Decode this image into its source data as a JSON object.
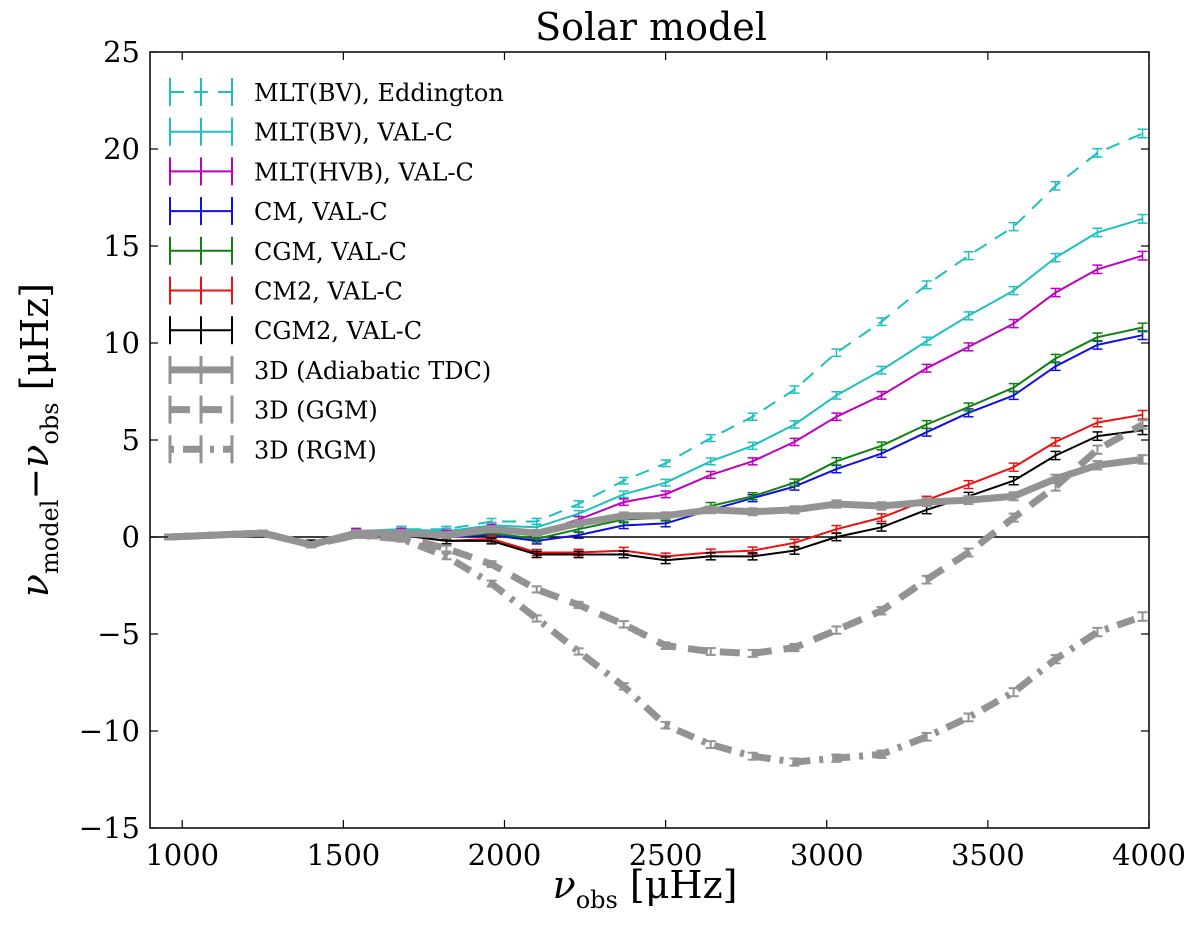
{
  "chart_data": {
    "type": "line",
    "title": "Solar model",
    "xlabel": {
      "main": "ν",
      "sub": "obs",
      "unit": " [μHz]"
    },
    "ylabel": {
      "main1": "ν",
      "sub1": "model",
      "minus": "−",
      "main2": "ν",
      "sub2": "obs",
      "unit": " [μHz]"
    },
    "xlim": [
      900,
      4000
    ],
    "ylim": [
      -15,
      25
    ],
    "xticks": [
      1000,
      1500,
      2000,
      2500,
      3000,
      3500,
      4000
    ],
    "yticks": [
      -15,
      -10,
      -5,
      0,
      5,
      10,
      15,
      20,
      25
    ],
    "ytick_labels": [
      "−15",
      "−10",
      "−5",
      "0",
      "5",
      "10",
      "15",
      "20",
      "25"
    ],
    "zero_line": true,
    "grid": false,
    "legend_position": "top-left",
    "x": [
      960,
      1100,
      1250,
      1400,
      1540,
      1680,
      1820,
      1960,
      2100,
      2230,
      2370,
      2500,
      2640,
      2770,
      2900,
      3030,
      3170,
      3310,
      3440,
      3580,
      3710,
      3840,
      3980
    ],
    "series": [
      {
        "name": "MLT(BV), Eddington",
        "color": "#1fbfbf",
        "width": 2,
        "dash": "14 10",
        "values": [
          0,
          0.1,
          0.2,
          -0.3,
          0.3,
          0.4,
          0.4,
          0.8,
          0.8,
          1.7,
          2.9,
          3.8,
          5.1,
          6.2,
          7.6,
          9.5,
          11.1,
          13.0,
          14.5,
          16.0,
          18.1,
          19.8,
          20.8
        ]
      },
      {
        "name": "MLT(BV), VAL-C",
        "color": "#1fbfbf",
        "width": 2,
        "dash": "",
        "values": [
          0,
          0.1,
          0.2,
          -0.3,
          0.3,
          0.4,
          0.3,
          0.6,
          0.5,
          1.2,
          2.2,
          2.8,
          3.9,
          4.7,
          5.8,
          7.3,
          8.6,
          10.1,
          11.4,
          12.7,
          14.4,
          15.7,
          16.4
        ]
      },
      {
        "name": "MLT(HVB), VAL-C",
        "color": "#bf00bf",
        "width": 2,
        "dash": "",
        "values": [
          0,
          0.1,
          0.2,
          -0.3,
          0.3,
          0.3,
          0.2,
          0.5,
          0.2,
          0.9,
          1.8,
          2.2,
          3.2,
          3.9,
          4.9,
          6.2,
          7.3,
          8.7,
          9.8,
          11.0,
          12.6,
          13.8,
          14.5
        ]
      },
      {
        "name": "CM, VAL-C",
        "color": "#1010e0",
        "width": 2,
        "dash": "",
        "values": [
          0,
          0.1,
          0.2,
          -0.3,
          0.2,
          0.2,
          0.0,
          0.1,
          -0.2,
          0.1,
          0.6,
          0.7,
          1.4,
          2.0,
          2.6,
          3.5,
          4.3,
          5.4,
          6.4,
          7.3,
          8.8,
          9.9,
          10.4
        ]
      },
      {
        "name": "CGM, VAL-C",
        "color": "#108010",
        "width": 2,
        "dash": "",
        "values": [
          0,
          0.1,
          0.2,
          -0.3,
          0.2,
          0.2,
          0.0,
          0.2,
          -0.1,
          0.4,
          0.9,
          1.0,
          1.6,
          2.1,
          2.8,
          3.9,
          4.7,
          5.8,
          6.7,
          7.7,
          9.2,
          10.3,
          10.8
        ]
      },
      {
        "name": "CM2, VAL-C",
        "color": "#ee1010",
        "width": 2,
        "dash": "",
        "values": [
          0,
          0.1,
          0.2,
          -0.3,
          0.2,
          0.1,
          -0.2,
          -0.1,
          -0.8,
          -0.8,
          -0.7,
          -1.0,
          -0.8,
          -0.7,
          -0.3,
          0.4,
          1.0,
          1.9,
          2.7,
          3.6,
          4.9,
          5.9,
          6.3
        ]
      },
      {
        "name": "CGM2, VAL-C",
        "color": "#000000",
        "width": 2,
        "dash": "",
        "values": [
          0,
          0.1,
          0.2,
          -0.3,
          0.2,
          0.1,
          -0.2,
          -0.2,
          -0.9,
          -0.9,
          -0.9,
          -1.2,
          -1.0,
          -1.0,
          -0.7,
          0.0,
          0.5,
          1.4,
          2.1,
          2.9,
          4.2,
          5.2,
          5.5
        ]
      },
      {
        "name": "3D (Adiabatic TDC)",
        "color": "#939393",
        "width": 7,
        "dash": "",
        "values": [
          0,
          0.1,
          0.2,
          -0.4,
          0.2,
          0.2,
          0.1,
          0.4,
          0.2,
          0.7,
          1.1,
          1.1,
          1.4,
          1.3,
          1.4,
          1.7,
          1.6,
          1.8,
          1.9,
          2.1,
          3.0,
          3.7,
          4.0
        ]
      },
      {
        "name": "3D (GGM)",
        "color": "#939393",
        "width": 7,
        "dash": "20 12",
        "values": [
          0,
          0.1,
          0.2,
          -0.4,
          0.1,
          0.0,
          -0.6,
          -1.4,
          -2.7,
          -3.5,
          -4.5,
          -5.6,
          -5.9,
          -6.0,
          -5.7,
          -4.8,
          -3.8,
          -2.2,
          -0.8,
          1.0,
          2.6,
          4.5,
          5.8
        ]
      },
      {
        "name": "3D (RGM)",
        "color": "#939393",
        "width": 7,
        "dash": "4 9 18 9",
        "values": [
          0,
          0.1,
          0.2,
          -0.4,
          0.1,
          -0.1,
          -1.0,
          -2.4,
          -4.2,
          -5.9,
          -7.7,
          -9.7,
          -10.7,
          -11.3,
          -11.6,
          -11.4,
          -11.2,
          -10.3,
          -9.3,
          -8.0,
          -6.3,
          -4.9,
          -4.1
        ]
      }
    ]
  }
}
